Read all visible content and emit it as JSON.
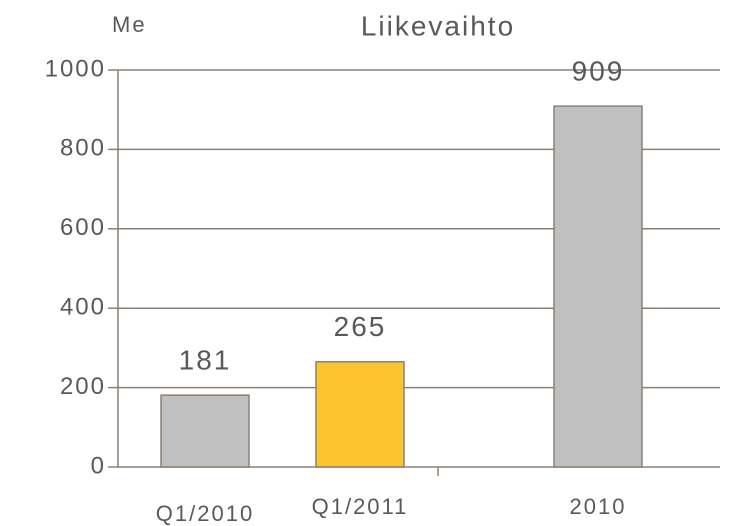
{
  "chart_data": {
    "type": "bar",
    "title": "Liikevaihto",
    "y_label": "Me",
    "categories": [
      "Q1/2010",
      "Q1/2011",
      "2010"
    ],
    "values": [
      181,
      265,
      909
    ],
    "colors": [
      "#c0c0c0",
      "#fcc52d",
      "#c0c0c0"
    ],
    "ylim": [
      0,
      1000
    ],
    "yticks": [
      0,
      200,
      400,
      600,
      800,
      1000
    ],
    "grid": true
  }
}
